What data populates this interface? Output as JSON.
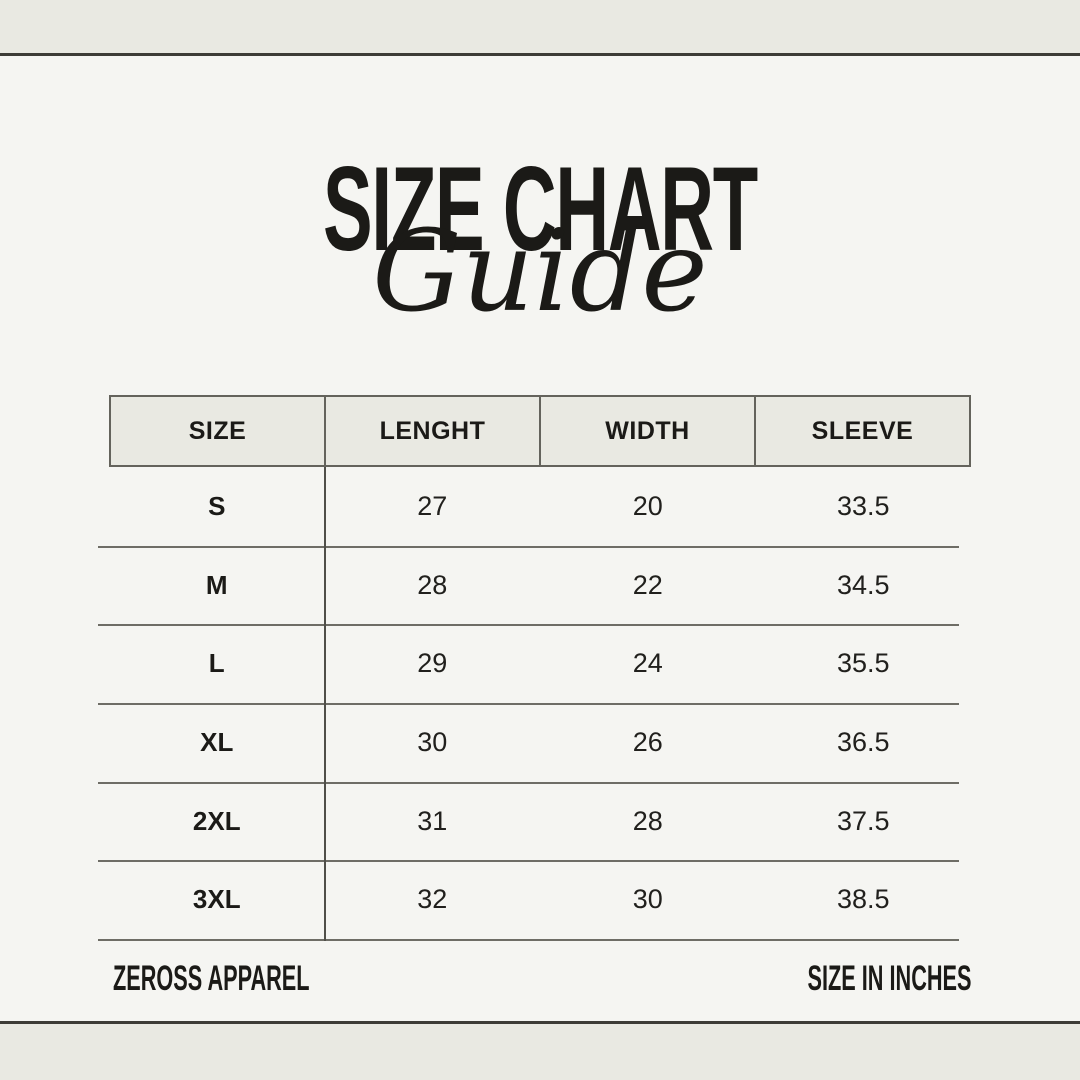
{
  "title": {
    "main": "SIZE CHART",
    "script": "Guide"
  },
  "table": {
    "headers": [
      "SIZE",
      "LENGHT",
      "WIDTH",
      "SLEEVE"
    ],
    "rows": [
      [
        "S",
        "27",
        "20",
        "33.5"
      ],
      [
        "M",
        "28",
        "22",
        "34.5"
      ],
      [
        "L",
        "29",
        "24",
        "35.5"
      ],
      [
        "XL",
        "30",
        "26",
        "36.5"
      ],
      [
        "2XL",
        "31",
        "28",
        "37.5"
      ],
      [
        "3XL",
        "32",
        "30",
        "38.5"
      ]
    ]
  },
  "footer": {
    "brand": "ZEROSS APPAREL",
    "unit_note": "SIZE IN INCHES"
  },
  "colors": {
    "background": "#f5f5f2",
    "band": "#e9e9e2",
    "frame_line": "#3d3c37",
    "grid_line": "#6e6d66",
    "text": "#1b1a17"
  }
}
